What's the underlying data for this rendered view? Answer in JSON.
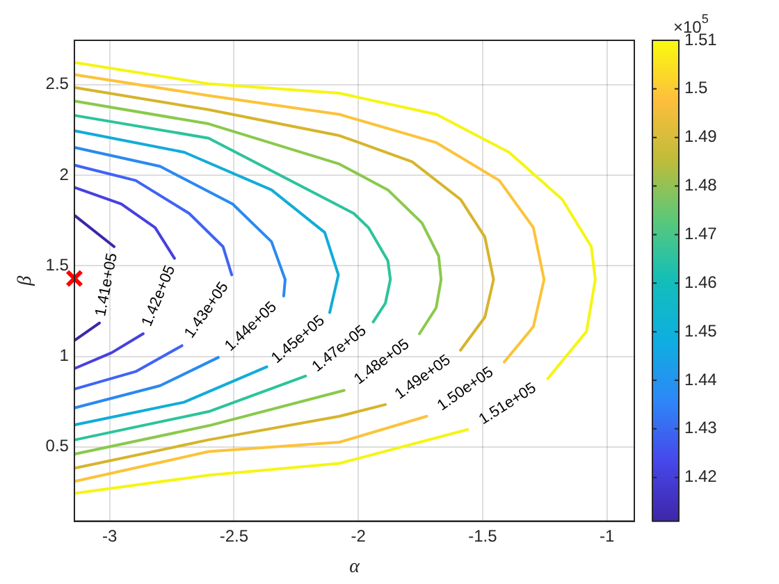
{
  "chart_data": {
    "type": "line",
    "xlabel": "α",
    "ylabel": "β",
    "xlim": [
      -3.1416,
      -0.89
    ],
    "ylim": [
      0.09,
      2.745
    ],
    "xticks": [
      -3,
      -2.5,
      -2,
      -1.5,
      -1
    ],
    "yticks": [
      0.5,
      1,
      1.5,
      2,
      2.5
    ],
    "grid": true,
    "legend": false,
    "marker": "none",
    "line_style": "solid",
    "clim": [
      1.411,
      1.51
    ],
    "cticks": [
      1.42,
      1.43,
      1.44,
      1.45,
      1.46,
      1.47,
      1.48,
      1.49,
      1.5,
      1.51
    ],
    "clabel": "×10$^{5}$",
    "series": [
      {
        "name": "1.41e+05",
        "color": "#3e26a8",
        "x": [
          -3.139,
          -2.982,
          null,
          -3.041,
          -3.139
        ],
        "values": [
          1.776,
          1.606,
          null,
          1.184,
          1.09
        ]
      },
      {
        "name": "1.42e+05",
        "color": "#4740e0",
        "x": [
          -3.139,
          -2.953,
          -2.817,
          -2.739,
          null,
          -2.865,
          -2.992,
          -3.139
        ],
        "values": [
          1.932,
          1.841,
          1.711,
          1.541,
          null,
          1.125,
          1.02,
          0.934
        ]
      },
      {
        "name": "1.43e+05",
        "color": "#3f64f5",
        "x": [
          -3.139,
          -2.895,
          -2.68,
          -2.544,
          -2.509,
          null,
          -2.709,
          -2.895,
          -3.139
        ],
        "values": [
          2.055,
          1.971,
          1.789,
          1.606,
          1.45,
          null,
          1.059,
          0.916,
          0.82
        ]
      },
      {
        "name": "1.44e+05",
        "color": "#2a8af0",
        "x": [
          -3.139,
          -2.797,
          -2.505,
          -2.349,
          -2.294,
          -2.3,
          null,
          -2.563,
          -2.797,
          -3.139
        ],
        "values": [
          2.153,
          2.049,
          1.841,
          1.633,
          1.424,
          1.333,
          null,
          0.994,
          0.838,
          0.716
        ]
      },
      {
        "name": "1.45e+05",
        "color": "#12acd8",
        "x": [
          -3.139,
          -2.7,
          -2.349,
          -2.135,
          -2.08,
          -2.115,
          null,
          -2.368,
          -2.7,
          -3.139
        ],
        "values": [
          2.245,
          2.127,
          1.919,
          1.684,
          1.45,
          1.242,
          null,
          0.942,
          0.747,
          0.622
        ]
      },
      {
        "name": "1.47e+05",
        "color": "#2cc39c",
        "x": [
          -3.139,
          -2.602,
          -2.018,
          -1.959,
          -1.881,
          -1.871,
          -1.891,
          -1.94,
          null,
          -2.212,
          -2.602,
          -3.139
        ],
        "values": [
          2.33,
          2.205,
          1.789,
          1.711,
          1.528,
          1.424,
          1.294,
          1.19,
          null,
          0.891,
          0.695,
          0.539
        ]
      },
      {
        "name": "1.48e+05",
        "color": "#8ac94c",
        "x": [
          -3.139,
          -2.602,
          -2.076,
          -1.881,
          -1.744,
          -1.677,
          -1.667,
          -1.687,
          -1.754,
          null,
          -2.057,
          -2.602,
          -3.139
        ],
        "values": [
          2.409,
          2.284,
          2.062,
          1.919,
          1.737,
          1.555,
          1.424,
          1.268,
          1.125,
          null,
          0.812,
          0.617,
          0.461
        ]
      },
      {
        "name": "1.49e+05",
        "color": "#d6b42c",
        "x": [
          -3.139,
          -2.602,
          -2.076,
          -1.784,
          -1.589,
          -1.491,
          -1.456,
          -1.491,
          -1.589,
          null,
          -1.891,
          -2.076,
          -2.602,
          -3.139
        ],
        "values": [
          2.484,
          2.362,
          2.219,
          2.075,
          1.867,
          1.659,
          1.424,
          1.216,
          1.034,
          null,
          0.734,
          0.669,
          0.539,
          0.383
        ]
      },
      {
        "name": "1.50e+05",
        "color": "#fcc33a",
        "x": [
          -3.139,
          -2.602,
          -2.076,
          -1.686,
          -1.433,
          -1.296,
          -1.253,
          -1.296,
          -1.413,
          null,
          -1.725,
          -2.076,
          -2.602,
          -3.139
        ],
        "values": [
          2.555,
          2.44,
          2.336,
          2.18,
          1.971,
          1.711,
          1.424,
          1.164,
          0.969,
          null,
          0.669,
          0.526,
          0.474,
          0.31
        ]
      },
      {
        "name": "1.51e+05",
        "color": "#f5f514",
        "x": [
          -3.139,
          -2.602,
          -2.076,
          -1.686,
          -1.394,
          -1.18,
          -1.063,
          -1.047,
          -1.082,
          -1.238,
          null,
          -1.56,
          -2.076,
          -2.602,
          -3.139
        ],
        "values": [
          2.622,
          2.505,
          2.453,
          2.336,
          2.127,
          1.867,
          1.606,
          1.424,
          1.138,
          0.877,
          null,
          0.596,
          0.409,
          0.344,
          0.244
        ]
      },
      {
        "type": "scatter",
        "marker": "cross",
        "color": "#ff0000",
        "x": [
          -3.1416
        ],
        "values": [
          1.43
        ]
      }
    ]
  }
}
